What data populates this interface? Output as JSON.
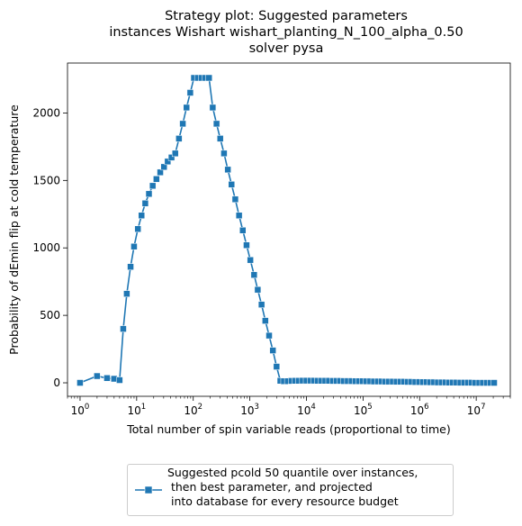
{
  "chart_data": {
    "type": "line",
    "title_lines": [
      "Strategy plot: Suggested parameters",
      "instances Wishart wishart_planting_N_100_alpha_0.50",
      "solver pysa"
    ],
    "xlabel": "Total number of spin variable reads (proportional to time)",
    "ylabel": "Probability of dEmin flip at cold temperature",
    "xscale": "log",
    "xlim": [
      0.6,
      40000000
    ],
    "ylim": [
      -100,
      2370
    ],
    "x_ticks": [
      {
        "value": 1,
        "base": "10",
        "exp": "0"
      },
      {
        "value": 10,
        "base": "10",
        "exp": "1"
      },
      {
        "value": 100,
        "base": "10",
        "exp": "2"
      },
      {
        "value": 1000,
        "base": "10",
        "exp": "3"
      },
      {
        "value": 10000,
        "base": "10",
        "exp": "4"
      },
      {
        "value": 100000,
        "base": "10",
        "exp": "5"
      },
      {
        "value": 1000000,
        "base": "10",
        "exp": "6"
      },
      {
        "value": 10000000,
        "base": "10",
        "exp": "7"
      }
    ],
    "y_ticks": [
      0,
      500,
      1000,
      1500,
      2000
    ],
    "grid": false,
    "legend_position": "below",
    "series": [
      {
        "name": "Suggested pcold 50 quantile over instances,\n then best parameter, and projected\n into database for every resource budget",
        "color": "#1f77b4",
        "marker": "square",
        "points": [
          [
            1,
            0
          ],
          [
            2,
            50
          ],
          [
            3,
            35
          ],
          [
            4,
            30
          ],
          [
            5,
            20
          ],
          [
            5.8,
            400
          ],
          [
            6.7,
            660
          ],
          [
            7.8,
            860
          ],
          [
            9,
            1010
          ],
          [
            10.5,
            1140
          ],
          [
            12.2,
            1240
          ],
          [
            14.2,
            1330
          ],
          [
            16.5,
            1400
          ],
          [
            19.2,
            1460
          ],
          [
            22.4,
            1510
          ],
          [
            26.1,
            1560
          ],
          [
            30.4,
            1600
          ],
          [
            35.4,
            1640
          ],
          [
            41.3,
            1670
          ],
          [
            48.1,
            1700
          ],
          [
            56,
            1810
          ],
          [
            65.3,
            1920
          ],
          [
            76.1,
            2040
          ],
          [
            88.6,
            2150
          ],
          [
            103,
            2260
          ],
          [
            120,
            2260
          ],
          [
            140,
            2260
          ],
          [
            163,
            2260
          ],
          [
            190,
            2260
          ],
          [
            221,
            2040
          ],
          [
            258,
            1920
          ],
          [
            300,
            1810
          ],
          [
            350,
            1700
          ],
          [
            408,
            1580
          ],
          [
            475,
            1470
          ],
          [
            553,
            1360
          ],
          [
            645,
            1240
          ],
          [
            751,
            1130
          ],
          [
            875,
            1020
          ],
          [
            1020,
            910
          ],
          [
            1190,
            800
          ],
          [
            1380,
            690
          ],
          [
            1610,
            580
          ],
          [
            1880,
            460
          ],
          [
            2190,
            350
          ],
          [
            2550,
            240
          ],
          [
            2970,
            120
          ],
          [
            3460,
            15
          ],
          [
            4000,
            12
          ],
          [
            4660,
            12
          ],
          [
            5430,
            14
          ],
          [
            6330,
            15
          ],
          [
            7370,
            15
          ],
          [
            8590,
            16
          ],
          [
            10000,
            16
          ],
          [
            11700,
            16
          ],
          [
            13600,
            16
          ],
          [
            15800,
            15
          ],
          [
            18500,
            15
          ],
          [
            21500,
            15
          ],
          [
            25000,
            15
          ],
          [
            29200,
            14
          ],
          [
            34000,
            14
          ],
          [
            39600,
            14
          ],
          [
            46100,
            13
          ],
          [
            53700,
            13
          ],
          [
            62600,
            13
          ],
          [
            72900,
            12
          ],
          [
            84900,
            12
          ],
          [
            98900,
            12
          ],
          [
            115000,
            11
          ],
          [
            134000,
            11
          ],
          [
            156000,
            10
          ],
          [
            182000,
            10
          ],
          [
            213000,
            10
          ],
          [
            248000,
            9
          ],
          [
            288000,
            9
          ],
          [
            336000,
            9
          ],
          [
            391000,
            8
          ],
          [
            456000,
            8
          ],
          [
            531000,
            8
          ],
          [
            618000,
            7
          ],
          [
            720000,
            7
          ],
          [
            839000,
            6
          ],
          [
            978000,
            6
          ],
          [
            1140000,
            5
          ],
          [
            1330000,
            5
          ],
          [
            1550000,
            4
          ],
          [
            1800000,
            4
          ],
          [
            2100000,
            3
          ],
          [
            2440000,
            3
          ],
          [
            2850000,
            3
          ],
          [
            3320000,
            2
          ],
          [
            3860000,
            2
          ],
          [
            4500000,
            2
          ],
          [
            5250000,
            1
          ],
          [
            6110000,
            1
          ],
          [
            7120000,
            1
          ],
          [
            8290000,
            1
          ],
          [
            9660000,
            0
          ],
          [
            11300000,
            0
          ],
          [
            13100000,
            0
          ],
          [
            15300000,
            0
          ],
          [
            17800000,
            0
          ],
          [
            20700000,
            0
          ]
        ]
      }
    ]
  }
}
